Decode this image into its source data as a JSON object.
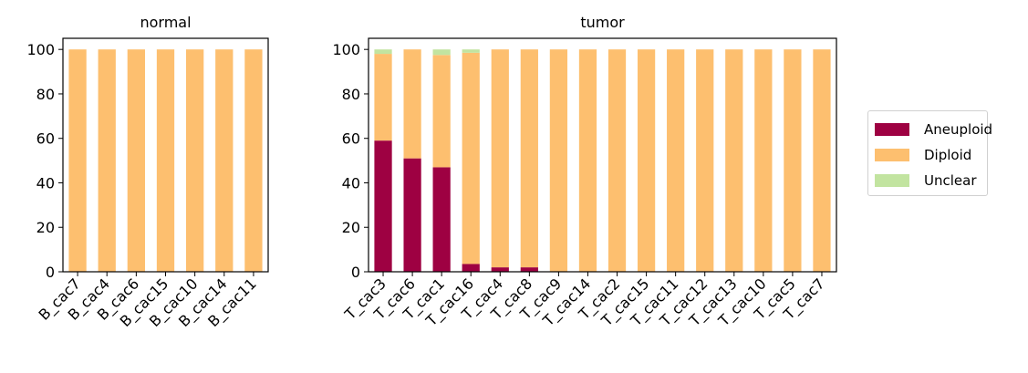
{
  "colors": {
    "Aneuploid": "#9e0142",
    "Diploid": "#fdbf6f",
    "Unclear": "#c2e4a0"
  },
  "chart_data": [
    {
      "type": "bar",
      "stacked": true,
      "title": "normal",
      "categories": [
        "B_cac7",
        "B_cac4",
        "B_cac6",
        "B_cac15",
        "B_cac10",
        "B_cac14",
        "B_cac11"
      ],
      "series": [
        {
          "name": "Aneuploid",
          "values": [
            0,
            0,
            0,
            0,
            0,
            0,
            0
          ]
        },
        {
          "name": "Diploid",
          "values": [
            100,
            100,
            100,
            100,
            100,
            100,
            100
          ]
        },
        {
          "name": "Unclear",
          "values": [
            0,
            0,
            0,
            0,
            0,
            0,
            0
          ]
        }
      ],
      "ylim": [
        0,
        105
      ],
      "yticks": [
        "0",
        "20",
        "40",
        "60",
        "80",
        "100"
      ],
      "xlabel": "",
      "ylabel": ""
    },
    {
      "type": "bar",
      "stacked": true,
      "title": "tumor",
      "categories": [
        "T_cac3",
        "T_cac6",
        "T_cac1",
        "T_cac16",
        "T_cac4",
        "T_cac8",
        "T_cac9",
        "T_cac14",
        "T_cac2",
        "T_cac15",
        "T_cac11",
        "T_cac12",
        "T_cac13",
        "T_cac10",
        "T_cac5",
        "T_cac7"
      ],
      "series": [
        {
          "name": "Aneuploid",
          "values": [
            59,
            51,
            47,
            3.5,
            2,
            2,
            0,
            0,
            0,
            0,
            0,
            0,
            0,
            0,
            0,
            0
          ]
        },
        {
          "name": "Diploid",
          "values": [
            39,
            49,
            50.5,
            95,
            98,
            98,
            100,
            100,
            100,
            100,
            100,
            100,
            100,
            100,
            100,
            100
          ]
        },
        {
          "name": "Unclear",
          "values": [
            2,
            0,
            2.5,
            1.5,
            0,
            0,
            0,
            0,
            0,
            0,
            0,
            0,
            0,
            0,
            0,
            0
          ]
        }
      ],
      "ylim": [
        0,
        105
      ],
      "yticks": [
        "0",
        "20",
        "40",
        "60",
        "80",
        "100"
      ],
      "xlabel": "",
      "ylabel": ""
    }
  ],
  "legend": {
    "placement": "right",
    "items": [
      {
        "label": "Aneuploid",
        "color": "#9e0142"
      },
      {
        "label": "Diploid",
        "color": "#fdbf6f"
      },
      {
        "label": "Unclear",
        "color": "#c2e4a0"
      }
    ]
  }
}
